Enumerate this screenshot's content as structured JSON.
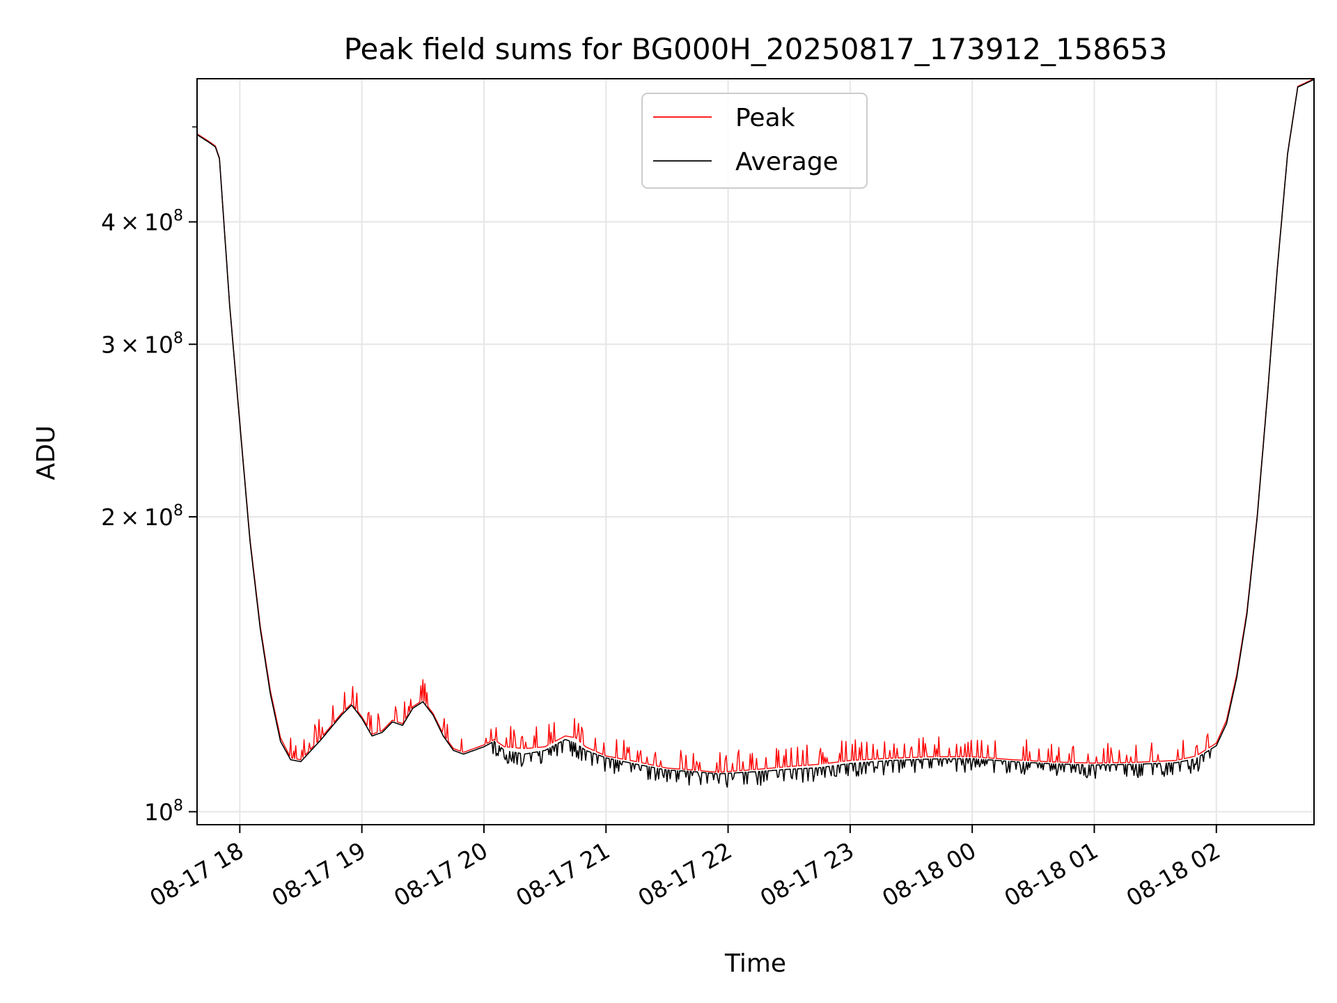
{
  "chart_data": {
    "type": "line",
    "title": "Peak field sums for BG000H_20250817_173912_158653",
    "xlabel": "Time",
    "ylabel": "ADU",
    "y_scale": "log",
    "grid": true,
    "legend_position": "top-center",
    "x_range": [
      "2025-08-17 17:39",
      "2025-08-18 02:48"
    ],
    "ylim": [
      97000000,
      560000000
    ],
    "x_ticks": [
      {
        "time": "2025-08-17 18:00",
        "label": "08-17 18"
      },
      {
        "time": "2025-08-17 19:00",
        "label": "08-17 19"
      },
      {
        "time": "2025-08-17 20:00",
        "label": "08-17 20"
      },
      {
        "time": "2025-08-17 21:00",
        "label": "08-17 21"
      },
      {
        "time": "2025-08-17 22:00",
        "label": "08-17 22"
      },
      {
        "time": "2025-08-17 23:00",
        "label": "08-17 23"
      },
      {
        "time": "2025-08-18 00:00",
        "label": "08-18 00"
      },
      {
        "time": "2025-08-18 01:00",
        "label": "08-18 01"
      },
      {
        "time": "2025-08-18 02:00",
        "label": "08-18 02"
      }
    ],
    "y_ticks": [
      {
        "value": 100000000,
        "mantissa": "",
        "exponent": "8"
      },
      {
        "value": 200000000,
        "mantissa": "2",
        "exponent": "8"
      },
      {
        "value": 300000000,
        "mantissa": "3",
        "exponent": "8"
      },
      {
        "value": 400000000,
        "mantissa": "4",
        "exponent": "8"
      }
    ],
    "y_tick_base": "10",
    "times_sign": "×",
    "series": [
      {
        "name": "Peak",
        "color": "#ff0000",
        "points": [
          [
            "2025-08-17 17:39",
            492000000
          ],
          [
            "2025-08-17 17:45",
            483000000
          ],
          [
            "2025-08-17 17:48",
            478000000
          ],
          [
            "2025-08-17 17:50",
            465000000
          ],
          [
            "2025-08-17 17:55",
            330000000
          ],
          [
            "2025-08-17 18:00",
            250000000
          ],
          [
            "2025-08-17 18:05",
            190000000
          ],
          [
            "2025-08-17 18:10",
            155000000
          ],
          [
            "2025-08-17 18:15",
            133000000
          ],
          [
            "2025-08-17 18:20",
            119000000
          ],
          [
            "2025-08-17 18:25",
            113500000
          ],
          [
            "2025-08-17 18:30",
            113000000
          ],
          [
            "2025-08-17 18:40",
            119000000
          ],
          [
            "2025-08-17 18:50",
            126000000
          ],
          [
            "2025-08-17 18:55",
            129000000
          ],
          [
            "2025-08-17 19:00",
            125000000
          ],
          [
            "2025-08-17 19:05",
            120000000
          ],
          [
            "2025-08-17 19:10",
            121000000
          ],
          [
            "2025-08-17 19:15",
            124000000
          ],
          [
            "2025-08-17 19:20",
            123000000
          ],
          [
            "2025-08-17 19:25",
            128000000
          ],
          [
            "2025-08-17 19:30",
            130000000
          ],
          [
            "2025-08-17 19:35",
            126000000
          ],
          [
            "2025-08-17 19:40",
            120000000
          ],
          [
            "2025-08-17 19:45",
            116000000
          ],
          [
            "2025-08-17 19:50",
            115000000
          ],
          [
            "2025-08-17 20:00",
            117000000
          ],
          [
            "2025-08-17 20:05",
            118500000
          ],
          [
            "2025-08-17 20:10",
            116500000
          ],
          [
            "2025-08-17 20:20",
            116000000
          ],
          [
            "2025-08-17 20:30",
            116500000
          ],
          [
            "2025-08-17 20:35",
            118000000
          ],
          [
            "2025-08-17 20:40",
            119500000
          ],
          [
            "2025-08-17 20:45",
            119000000
          ],
          [
            "2025-08-17 20:50",
            116500000
          ],
          [
            "2025-08-17 21:00",
            114000000
          ],
          [
            "2025-08-17 21:15",
            112500000
          ],
          [
            "2025-08-17 21:30",
            110800000
          ],
          [
            "2025-08-17 21:45",
            110200000
          ],
          [
            "2025-08-17 21:55",
            109700000
          ],
          [
            "2025-08-17 22:15",
            110500000
          ],
          [
            "2025-08-17 22:30",
            111200000
          ],
          [
            "2025-08-17 22:45",
            111800000
          ],
          [
            "2025-08-17 23:00",
            112800000
          ],
          [
            "2025-08-17 23:20",
            113400000
          ],
          [
            "2025-08-17 23:40",
            113800000
          ],
          [
            "2025-08-18 00:00",
            113800000
          ],
          [
            "2025-08-18 00:20",
            113000000
          ],
          [
            "2025-08-18 00:40",
            112400000
          ],
          [
            "2025-08-18 01:00",
            112100000
          ],
          [
            "2025-08-18 01:20",
            112300000
          ],
          [
            "2025-08-18 01:40",
            112800000
          ],
          [
            "2025-08-18 01:50",
            114000000
          ],
          [
            "2025-08-18 02:00",
            117500000
          ],
          [
            "2025-08-18 02:05",
            124000000
          ],
          [
            "2025-08-18 02:10",
            138000000
          ],
          [
            "2025-08-18 02:15",
            160000000
          ],
          [
            "2025-08-18 02:20",
            200000000
          ],
          [
            "2025-08-18 02:25",
            265000000
          ],
          [
            "2025-08-18 02:30",
            360000000
          ],
          [
            "2025-08-18 02:35",
            470000000
          ],
          [
            "2025-08-18 02:40",
            550000000
          ],
          [
            "2025-08-18 02:48",
            560000000
          ]
        ]
      },
      {
        "name": "Average",
        "color": "#000000",
        "points": [
          [
            "2025-08-17 17:39",
            491000000
          ],
          [
            "2025-08-17 17:45",
            482000000
          ],
          [
            "2025-08-17 17:48",
            477000000
          ],
          [
            "2025-08-17 17:50",
            464000000
          ],
          [
            "2025-08-17 17:55",
            329000000
          ],
          [
            "2025-08-17 18:00",
            249000000
          ],
          [
            "2025-08-17 18:05",
            189000000
          ],
          [
            "2025-08-17 18:10",
            154000000
          ],
          [
            "2025-08-17 18:15",
            132000000
          ],
          [
            "2025-08-17 18:20",
            118000000
          ],
          [
            "2025-08-17 18:25",
            113000000
          ],
          [
            "2025-08-17 18:30",
            112500000
          ],
          [
            "2025-08-17 18:40",
            118500000
          ],
          [
            "2025-08-17 18:50",
            125500000
          ],
          [
            "2025-08-17 18:55",
            128500000
          ],
          [
            "2025-08-17 19:00",
            124500000
          ],
          [
            "2025-08-17 19:05",
            119500000
          ],
          [
            "2025-08-17 19:10",
            120500000
          ],
          [
            "2025-08-17 19:15",
            123500000
          ],
          [
            "2025-08-17 19:20",
            122500000
          ],
          [
            "2025-08-17 19:25",
            127500000
          ],
          [
            "2025-08-17 19:30",
            129500000
          ],
          [
            "2025-08-17 19:35",
            125500000
          ],
          [
            "2025-08-17 19:40",
            119500000
          ],
          [
            "2025-08-17 19:45",
            115500000
          ],
          [
            "2025-08-17 19:50",
            114500000
          ],
          [
            "2025-08-17 20:00",
            116500000
          ],
          [
            "2025-08-17 20:05",
            118000000
          ],
          [
            "2025-08-17 20:10",
            115500000
          ],
          [
            "2025-08-17 20:20",
            114500000
          ],
          [
            "2025-08-17 20:30",
            115500000
          ],
          [
            "2025-08-17 20:35",
            117000000
          ],
          [
            "2025-08-17 20:40",
            118500000
          ],
          [
            "2025-08-17 20:45",
            117500000
          ],
          [
            "2025-08-17 20:50",
            115500000
          ],
          [
            "2025-08-17 21:00",
            113500000
          ],
          [
            "2025-08-17 21:15",
            111800000
          ],
          [
            "2025-08-17 21:30",
            110300000
          ],
          [
            "2025-08-17 21:45",
            109800000
          ],
          [
            "2025-08-17 21:55",
            109300000
          ],
          [
            "2025-08-17 22:15",
            109900000
          ],
          [
            "2025-08-17 22:30",
            110500000
          ],
          [
            "2025-08-17 22:45",
            110900000
          ],
          [
            "2025-08-17 23:00",
            112000000
          ],
          [
            "2025-08-17 23:20",
            112800000
          ],
          [
            "2025-08-17 23:40",
            113200000
          ],
          [
            "2025-08-18 00:00",
            113300000
          ],
          [
            "2025-08-18 00:20",
            112500000
          ],
          [
            "2025-08-18 00:40",
            111900000
          ],
          [
            "2025-08-18 01:00",
            111600000
          ],
          [
            "2025-08-18 01:20",
            111800000
          ],
          [
            "2025-08-18 01:40",
            112200000
          ],
          [
            "2025-08-18 01:50",
            113300000
          ],
          [
            "2025-08-18 02:00",
            116800000
          ],
          [
            "2025-08-18 02:05",
            123000000
          ],
          [
            "2025-08-18 02:10",
            137000000
          ],
          [
            "2025-08-18 02:15",
            159000000
          ],
          [
            "2025-08-18 02:20",
            199000000
          ],
          [
            "2025-08-18 02:25",
            264000000
          ],
          [
            "2025-08-18 02:30",
            359000000
          ],
          [
            "2025-08-18 02:35",
            469000000
          ],
          [
            "2025-08-18 02:40",
            549000000
          ],
          [
            "2025-08-18 02:48",
            559000000
          ]
        ]
      }
    ]
  }
}
